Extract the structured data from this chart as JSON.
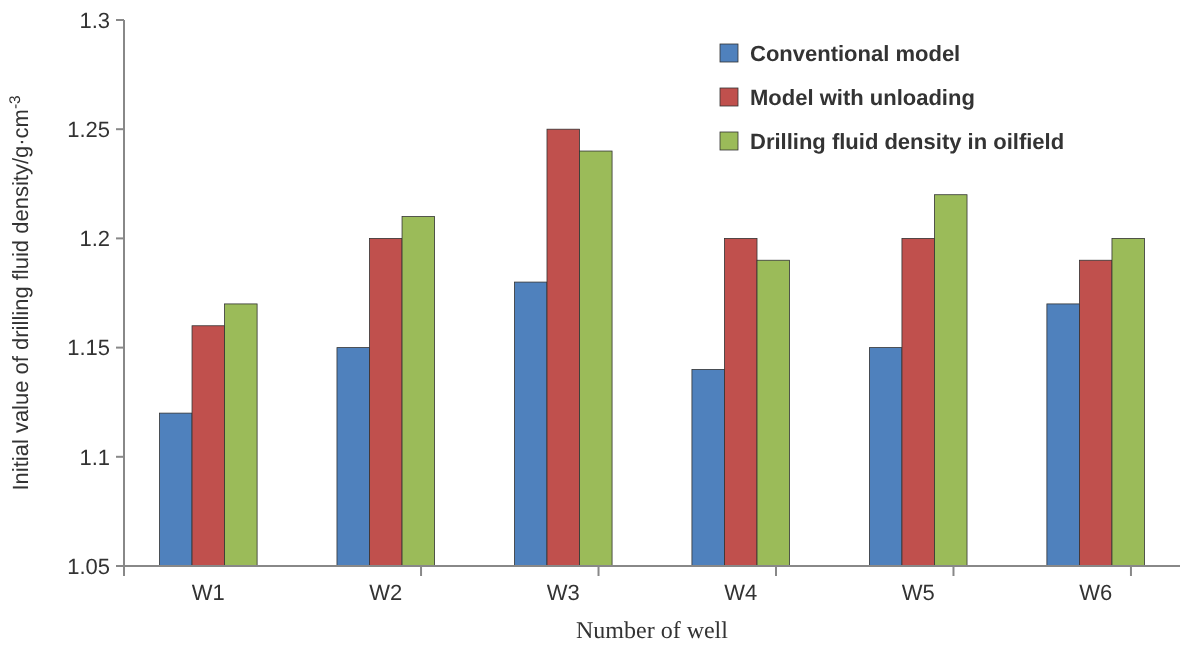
{
  "chart_data": {
    "type": "bar",
    "xlabel": "Number of well",
    "ylabel": "Initial value of drilling fluid density/g·cm$^{-3}$",
    "categories": [
      "W1",
      "W2",
      "W3",
      "W4",
      "W5",
      "W6"
    ],
    "series": [
      {
        "name": "Conventional model",
        "color": "#4f81bd",
        "values": [
          1.12,
          1.15,
          1.18,
          1.14,
          1.15,
          1.17
        ]
      },
      {
        "name": "Model with unloading",
        "color": "#c0504d",
        "values": [
          1.16,
          1.2,
          1.25,
          1.2,
          1.2,
          1.19
        ]
      },
      {
        "name": "Drilling fluid density in oilfield",
        "color": "#9bbb59",
        "values": [
          1.17,
          1.21,
          1.24,
          1.19,
          1.22,
          1.2
        ]
      }
    ],
    "ylim": [
      1.05,
      1.3
    ],
    "yticks": [
      1.05,
      1.1,
      1.15,
      1.2,
      1.25,
      1.3
    ],
    "grid": false,
    "legend": "top right"
  }
}
